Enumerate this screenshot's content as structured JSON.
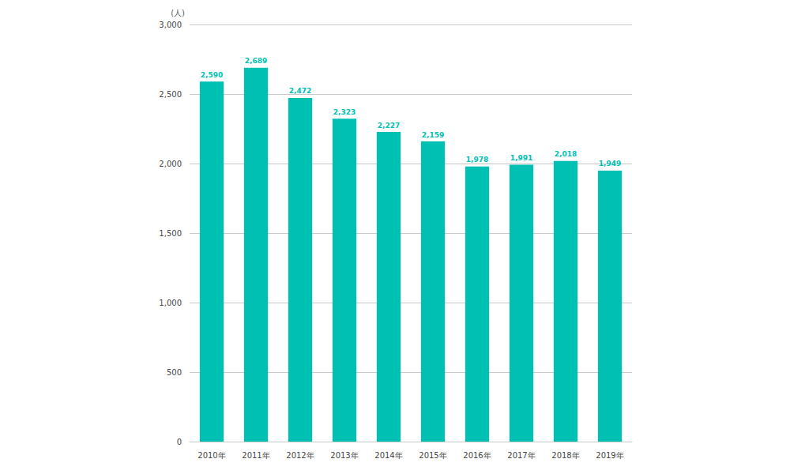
{
  "chart_data": {
    "type": "bar",
    "y_label": "(人)",
    "categories": [
      "2010年",
      "2011年",
      "2012年",
      "2013年",
      "2014年",
      "2015年",
      "2016年",
      "2017年",
      "2018年",
      "2019年"
    ],
    "values": [
      2590,
      2689,
      2472,
      2323,
      2227,
      2159,
      1978,
      1991,
      2018,
      1949
    ],
    "value_labels": [
      "2,590",
      "2,689",
      "2,472",
      "2,323",
      "2,227",
      "2,159",
      "1,978",
      "1,991",
      "2,018",
      "1,949"
    ],
    "color": "#00bfb3",
    "ylim": [
      0,
      3000
    ],
    "yticks": [
      0,
      500,
      {
        "value": 1000,
        "label": "1,000"
      },
      {
        "value": 1500,
        "label": "1,500"
      },
      {
        "value": 2000,
        "label": "2,000"
      },
      {
        "value": 2500,
        "label": "2,500"
      },
      {
        "value": 3000,
        "label": "3,000"
      }
    ],
    "grid": true,
    "data_labels": true
  }
}
